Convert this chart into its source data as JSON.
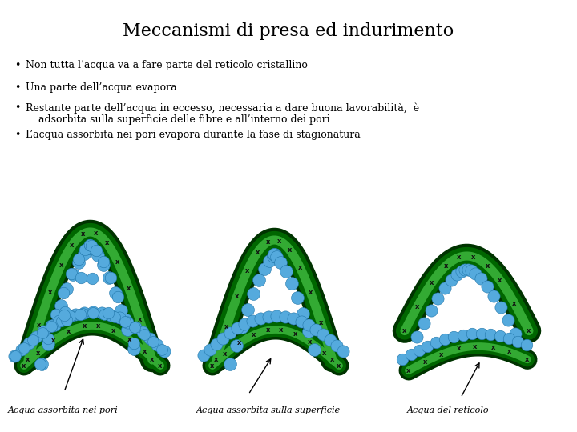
{
  "title": "Meccanismi di presa ed indurimento",
  "title_fontsize": 16,
  "title_font": "serif",
  "bullets": [
    "Non tutta l’acqua va a fare parte del reticolo cristallino",
    "Una parte dell’acqua evapora",
    "Restante parte dell’acqua in eccesso, necessaria a dare buona lavorabilità,  è\n    adsorbita sulla superficie delle fibre e all’interno dei pori",
    "L’acqua assorbita nei pori evapora durante la fase di stagionatura"
  ],
  "bullet_fontsize": 9,
  "bullet_font": "serif",
  "labels": [
    "Acqua assorbita nei pori",
    "Acqua assorbita sulla superficie",
    "Acqua del reticolo"
  ],
  "label_fontsize": 8,
  "label_font": "serif",
  "bg_color": "#ffffff",
  "text_color": "#000000",
  "fiber_dark": "#003300",
  "fiber_mid": "#006600",
  "fiber_light": "#33aa33",
  "water_color": "#55aadd",
  "water_edge": "#2277aa"
}
